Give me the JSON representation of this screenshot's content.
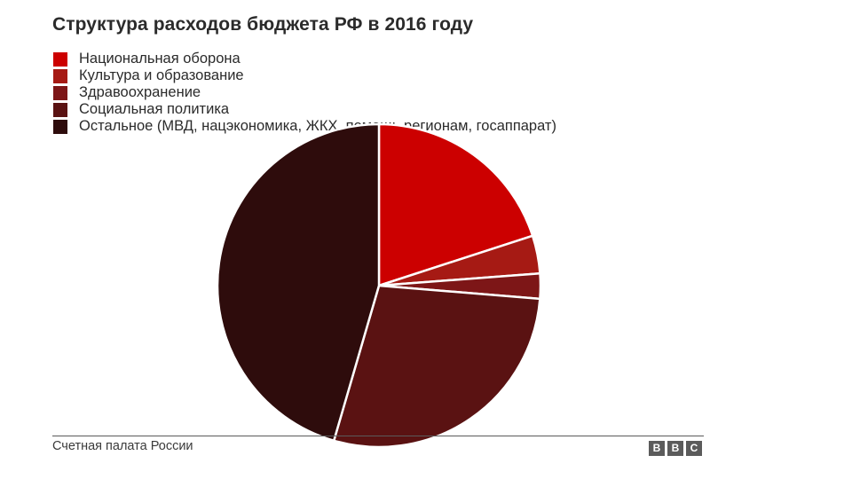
{
  "title": "Структура расходов бюджета РФ в 2016 году",
  "source": "Счетная палата России",
  "logo": {
    "letters": [
      "B",
      "B",
      "C"
    ]
  },
  "chart_data": {
    "type": "pie",
    "title": "Структура расходов бюджета РФ в 2016 году",
    "start_angle_deg": 0,
    "direction": "clockwise",
    "legend_position": "top-left",
    "slices": [
      {
        "label": "Национальная оборона",
        "value": 20.0,
        "color": "#cc0000"
      },
      {
        "label": "Культура и образование",
        "value": 3.8,
        "color": "#a61a14"
      },
      {
        "label": "Здравоохранение",
        "value": 2.5,
        "color": "#7d1617"
      },
      {
        "label": "Социальная политика",
        "value": 28.2,
        "color": "#5a1212"
      },
      {
        "label": "Остальное (МВД, нацэкономика, ЖКХ, помощь регионам, госаппарат)",
        "value": 45.5,
        "color": "#2e0c0c"
      }
    ]
  }
}
